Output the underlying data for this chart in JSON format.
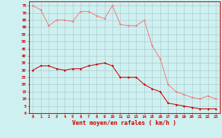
{
  "hours": [
    0,
    1,
    2,
    3,
    4,
    5,
    6,
    7,
    8,
    9,
    10,
    11,
    12,
    13,
    14,
    15,
    16,
    17,
    18,
    19,
    20,
    21,
    22,
    23
  ],
  "rafales": [
    75,
    72,
    61,
    65,
    65,
    64,
    71,
    71,
    68,
    66,
    75,
    62,
    61,
    61,
    65,
    47,
    38,
    20,
    15,
    13,
    11,
    10,
    12,
    10
  ],
  "moyen": [
    30,
    33,
    33,
    31,
    30,
    31,
    31,
    33,
    34,
    35,
    33,
    25,
    25,
    25,
    20,
    17,
    15,
    7,
    6,
    5,
    4,
    3,
    3,
    3
  ],
  "line_color_rafales": "#f08080",
  "line_color_moyen": "#cc0000",
  "bg_color": "#cff0f0",
  "grid_color": "#aacccc",
  "xlabel": "Vent moyen/en rafales ( km/h )",
  "xlabel_color": "#cc0000",
  "ylabel_ticks": [
    0,
    5,
    10,
    15,
    20,
    25,
    30,
    35,
    40,
    45,
    50,
    55,
    60,
    65,
    70,
    75
  ],
  "ylim": [
    0,
    78
  ],
  "xlim": [
    -0.5,
    23.5
  ]
}
